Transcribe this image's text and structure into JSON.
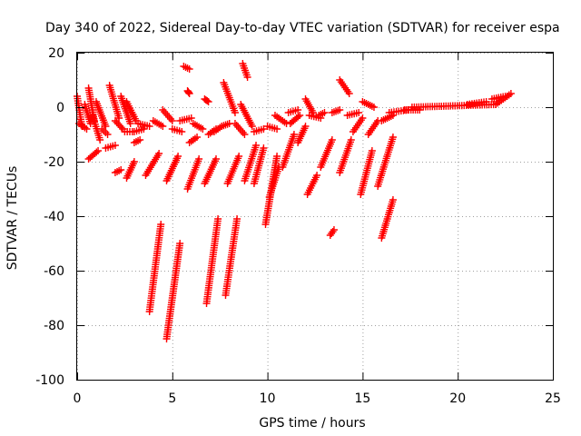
{
  "chart_data": {
    "type": "scatter",
    "title": "Day 340 of 2022, Sidereal Day-to-day VTEC variation (SDTVAR) for receiver espa",
    "xlabel": "GPS time / hours",
    "ylabel": "SDTVAR / TECUs",
    "xlim": [
      0,
      25
    ],
    "ylim": [
      -100,
      20
    ],
    "xticks": [
      0,
      5,
      10,
      15,
      20,
      25
    ],
    "yticks": [
      -100,
      -80,
      -60,
      -40,
      -20,
      0,
      20
    ],
    "xtick_labels": [
      "0",
      "5",
      "10",
      "15",
      "20",
      "25"
    ],
    "ytick_labels": [
      "-100",
      "-80",
      "-60",
      "-40",
      "-20",
      "0",
      "20"
    ],
    "grid": true,
    "marker": "+",
    "color": "#ff0000",
    "segments": [
      {
        "x0": 0.0,
        "x1": 0.25,
        "y0": 4,
        "y1": -7
      },
      {
        "x0": 0.1,
        "x1": 0.5,
        "y0": -6,
        "y1": -8
      },
      {
        "x0": 0.4,
        "x1": 0.7,
        "y0": 1,
        "y1": -6
      },
      {
        "x0": 0.6,
        "x1": 0.9,
        "y0": 7,
        "y1": -5
      },
      {
        "x0": 0.6,
        "x1": 1.1,
        "y0": -19,
        "y1": -16
      },
      {
        "x0": 0.8,
        "x1": 1.2,
        "y0": -3,
        "y1": -12
      },
      {
        "x0": 1.0,
        "x1": 1.5,
        "y0": 2,
        "y1": -7
      },
      {
        "x0": 1.3,
        "x1": 1.6,
        "y0": -8,
        "y1": -10
      },
      {
        "x0": 1.5,
        "x1": 2.0,
        "y0": -15,
        "y1": -14
      },
      {
        "x0": 1.7,
        "x1": 2.2,
        "y0": 8,
        "y1": -4
      },
      {
        "x0": 2.0,
        "x1": 2.4,
        "y0": -5,
        "y1": -8
      },
      {
        "x0": 2.0,
        "x1": 2.3,
        "y0": -24,
        "y1": -23
      },
      {
        "x0": 2.3,
        "x1": 2.8,
        "y0": 4,
        "y1": -6
      },
      {
        "x0": 2.5,
        "x1": 2.9,
        "y0": -9,
        "y1": -9
      },
      {
        "x0": 2.6,
        "x1": 3.0,
        "y0": -26,
        "y1": -20
      },
      {
        "x0": 2.6,
        "x1": 3.1,
        "y0": 2,
        "y1": -5
      },
      {
        "x0": 3.0,
        "x1": 3.5,
        "y0": -9,
        "y1": -8
      },
      {
        "x0": 3.2,
        "x1": 3.8,
        "y0": -6,
        "y1": -7
      },
      {
        "x0": 3.0,
        "x1": 3.3,
        "y0": -13,
        "y1": -12
      },
      {
        "x0": 3.6,
        "x1": 4.3,
        "y0": -25,
        "y1": -17
      },
      {
        "x0": 3.8,
        "x1": 4.4,
        "y0": -75,
        "y1": -43
      },
      {
        "x0": 4.0,
        "x1": 4.5,
        "y0": -5,
        "y1": -7
      },
      {
        "x0": 4.5,
        "x1": 5.0,
        "y0": -1,
        "y1": -5
      },
      {
        "x0": 4.7,
        "x1": 5.3,
        "y0": -27,
        "y1": -18
      },
      {
        "x0": 4.7,
        "x1": 5.4,
        "y0": -85,
        "y1": -50
      },
      {
        "x0": 5.0,
        "x1": 5.5,
        "y0": -8,
        "y1": -9
      },
      {
        "x0": 5.4,
        "x1": 6.0,
        "y0": -5,
        "y1": -4
      },
      {
        "x0": 5.6,
        "x1": 5.9,
        "y0": 15,
        "y1": 14
      },
      {
        "x0": 5.8,
        "x1": 5.9,
        "y0": 6,
        "y1": 5
      },
      {
        "x0": 5.8,
        "x1": 6.4,
        "y0": -30,
        "y1": -19
      },
      {
        "x0": 5.9,
        "x1": 6.3,
        "y0": -13,
        "y1": -11
      },
      {
        "x0": 6.1,
        "x1": 6.6,
        "y0": -6,
        "y1": -8
      },
      {
        "x0": 6.7,
        "x1": 6.9,
        "y0": 3,
        "y1": 2
      },
      {
        "x0": 6.7,
        "x1": 7.3,
        "y0": -28,
        "y1": -19
      },
      {
        "x0": 6.8,
        "x1": 7.4,
        "y0": -72,
        "y1": -41
      },
      {
        "x0": 6.9,
        "x1": 7.3,
        "y0": -10,
        "y1": -8
      },
      {
        "x0": 7.2,
        "x1": 7.6,
        "y0": -9,
        "y1": -7
      },
      {
        "x0": 7.6,
        "x1": 8.0,
        "y0": -7,
        "y1": -6
      },
      {
        "x0": 7.7,
        "x1": 8.3,
        "y0": 9,
        "y1": -2
      },
      {
        "x0": 7.8,
        "x1": 8.4,
        "y0": -69,
        "y1": -41
      },
      {
        "x0": 7.9,
        "x1": 8.5,
        "y0": -28,
        "y1": -18
      },
      {
        "x0": 8.3,
        "x1": 8.8,
        "y0": -6,
        "y1": -10
      },
      {
        "x0": 8.7,
        "x1": 8.95,
        "y0": 16,
        "y1": 11
      },
      {
        "x0": 8.6,
        "x1": 9.2,
        "y0": 1,
        "y1": -7
      },
      {
        "x0": 8.8,
        "x1": 9.4,
        "y0": -27,
        "y1": -14
      },
      {
        "x0": 9.3,
        "x1": 9.8,
        "y0": -9,
        "y1": -8
      },
      {
        "x0": 9.3,
        "x1": 9.8,
        "y0": -28,
        "y1": -15
      },
      {
        "x0": 9.9,
        "x1": 10.5,
        "y0": -43,
        "y1": -18
      },
      {
        "x0": 10.0,
        "x1": 10.5,
        "y0": -7,
        "y1": -8
      },
      {
        "x0": 10.1,
        "x1": 10.6,
        "y0": -33,
        "y1": -22
      },
      {
        "x0": 10.4,
        "x1": 11.0,
        "y0": -3,
        "y1": -6
      },
      {
        "x0": 10.8,
        "x1": 11.4,
        "y0": -22,
        "y1": -10
      },
      {
        "x0": 11.1,
        "x1": 11.6,
        "y0": -2,
        "y1": -1
      },
      {
        "x0": 11.2,
        "x1": 11.7,
        "y0": -6,
        "y1": -3
      },
      {
        "x0": 11.6,
        "x1": 12.0,
        "y0": -13,
        "y1": -7
      },
      {
        "x0": 12.0,
        "x1": 12.4,
        "y0": 3,
        "y1": -2
      },
      {
        "x0": 12.2,
        "x1": 12.8,
        "y0": -3,
        "y1": -4
      },
      {
        "x0": 12.1,
        "x1": 12.6,
        "y0": -32,
        "y1": -25
      },
      {
        "x0": 12.7,
        "x1": 13.0,
        "y0": -3,
        "y1": -2
      },
      {
        "x0": 12.8,
        "x1": 13.4,
        "y0": -22,
        "y1": -12
      },
      {
        "x0": 13.3,
        "x1": 13.5,
        "y0": -47,
        "y1": -45
      },
      {
        "x0": 13.4,
        "x1": 13.8,
        "y0": -2,
        "y1": -1
      },
      {
        "x0": 13.8,
        "x1": 14.3,
        "y0": 10,
        "y1": 5
      },
      {
        "x0": 13.8,
        "x1": 14.4,
        "y0": -24,
        "y1": -12
      },
      {
        "x0": 14.2,
        "x1": 14.8,
        "y0": -3,
        "y1": -2
      },
      {
        "x0": 14.5,
        "x1": 15.0,
        "y0": -9,
        "y1": -4
      },
      {
        "x0": 14.9,
        "x1": 15.5,
        "y0": -32,
        "y1": -16
      },
      {
        "x0": 15.0,
        "x1": 15.6,
        "y0": 2,
        "y1": 0
      },
      {
        "x0": 15.3,
        "x1": 15.8,
        "y0": -10,
        "y1": -5
      },
      {
        "x0": 15.8,
        "x1": 16.6,
        "y0": -29,
        "y1": -11
      },
      {
        "x0": 16.0,
        "x1": 16.6,
        "y0": -48,
        "y1": -34
      },
      {
        "x0": 16.0,
        "x1": 16.6,
        "y0": -5,
        "y1": -3
      },
      {
        "x0": 16.4,
        "x1": 17.4,
        "y0": -2,
        "y1": -1
      },
      {
        "x0": 17.2,
        "x1": 18.0,
        "y0": -1,
        "y1": -1
      },
      {
        "x0": 17.6,
        "x1": 22.0,
        "y0": 0,
        "y1": 1
      },
      {
        "x0": 20.5,
        "x1": 21.5,
        "y0": 1,
        "y1": 2
      },
      {
        "x0": 21.8,
        "x1": 22.5,
        "y0": 3,
        "y1": 4
      },
      {
        "x0": 22.0,
        "x1": 22.8,
        "y0": 1,
        "y1": 5
      }
    ]
  }
}
